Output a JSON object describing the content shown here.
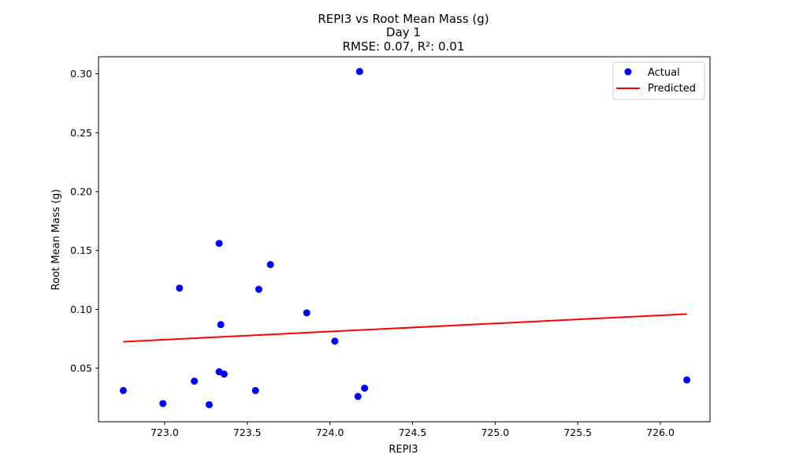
{
  "chart_data": {
    "type": "scatter",
    "title_lines": [
      "REPI3 vs Root Mean Mass (g)",
      "Day 1",
      "RMSE: 0.07, R²: 0.01"
    ],
    "xlabel": "REPI3",
    "ylabel": "Root Mean Mass (g)",
    "xlim": [
      722.6,
      726.3
    ],
    "ylim": [
      0.0045,
      0.3145
    ],
    "xticks": [
      723.0,
      723.5,
      724.0,
      724.5,
      725.0,
      725.5,
      726.0
    ],
    "xtick_labels": [
      "723.0",
      "723.5",
      "724.0",
      "724.5",
      "725.0",
      "725.5",
      "726.0"
    ],
    "yticks": [
      0.05,
      0.1,
      0.15,
      0.2,
      0.25,
      0.3
    ],
    "ytick_labels": [
      "0.05",
      "0.10",
      "0.15",
      "0.20",
      "0.25",
      "0.30"
    ],
    "grid": false,
    "legend_position": "top-right",
    "series": [
      {
        "name": "Actual",
        "kind": "scatter",
        "color": "#0000ff",
        "points": [
          [
            722.75,
            0.031
          ],
          [
            722.99,
            0.02
          ],
          [
            723.09,
            0.118
          ],
          [
            723.18,
            0.039
          ],
          [
            723.27,
            0.019
          ],
          [
            723.33,
            0.047
          ],
          [
            723.33,
            0.156
          ],
          [
            723.34,
            0.087
          ],
          [
            723.36,
            0.045
          ],
          [
            723.55,
            0.031
          ],
          [
            723.57,
            0.117
          ],
          [
            723.64,
            0.138
          ],
          [
            723.86,
            0.097
          ],
          [
            724.03,
            0.073
          ],
          [
            724.17,
            0.026
          ],
          [
            724.18,
            0.302
          ],
          [
            724.21,
            0.033
          ],
          [
            726.16,
            0.04
          ]
        ]
      },
      {
        "name": "Predicted",
        "kind": "line",
        "color": "#ff0000",
        "points": [
          [
            722.75,
            0.0725
          ],
          [
            726.16,
            0.096
          ]
        ]
      }
    ]
  }
}
